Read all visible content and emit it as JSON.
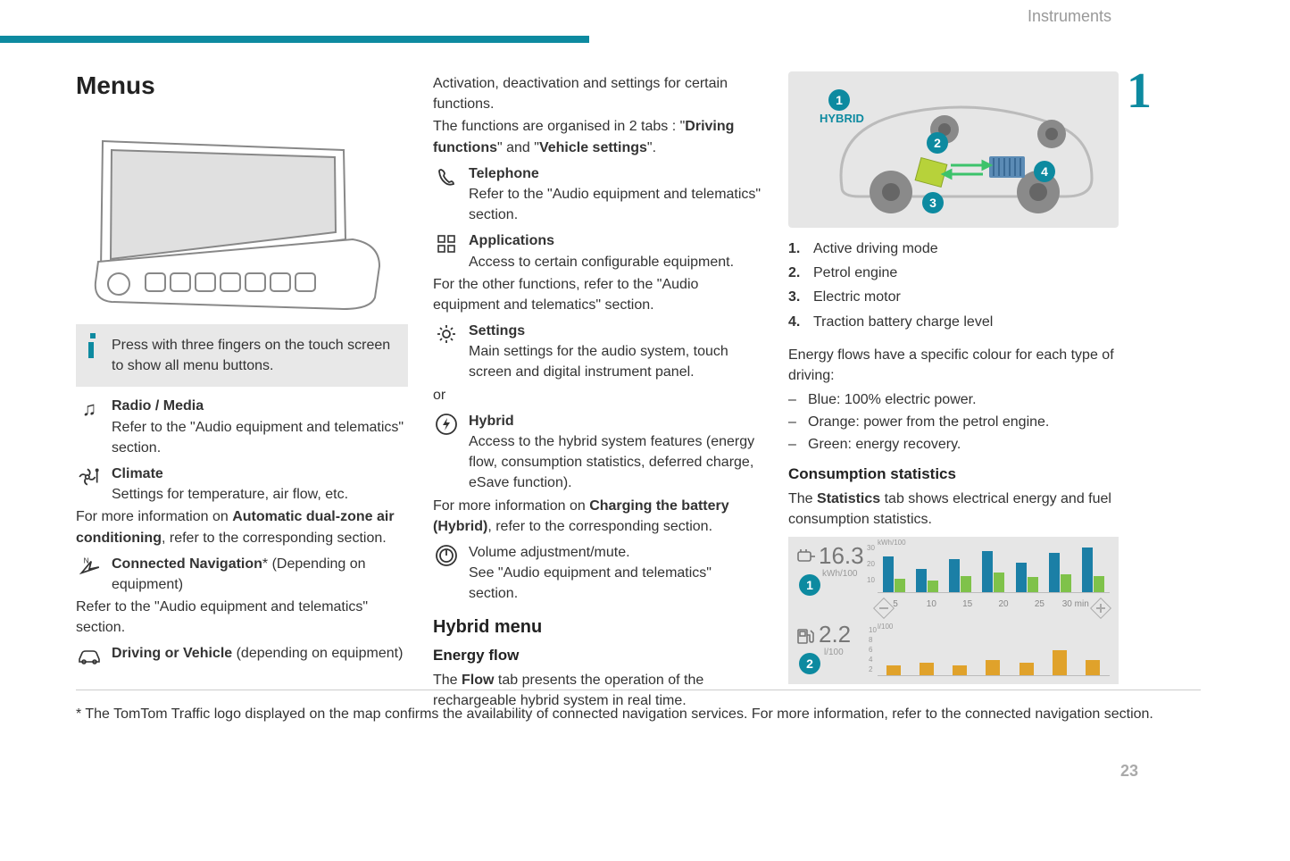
{
  "header": {
    "section": "Instruments",
    "chapter": "1",
    "page_number": "23"
  },
  "colors": {
    "accent": "#0d8aa0",
    "grey_bg": "#e6e6e6",
    "info_bg": "#e8e8e8",
    "text": "#333333",
    "muted": "#999999",
    "chart_blue": "#1b7fa6",
    "chart_green": "#7fc24a",
    "chart_orange": "#e0a22b"
  },
  "col1": {
    "title": "Menus",
    "info_note": "Press with three fingers on the touch screen to show all menu buttons.",
    "items": [
      {
        "icon": "music-note-icon",
        "title": "Radio / Media",
        "line1": "Refer to the \"Audio equipment and telematics\" section.",
        "after": ""
      },
      {
        "icon": "fan-icon",
        "title": "Climate",
        "line1": "Settings for temperature, air flow, etc.",
        "after_prefix": "For more information on ",
        "after_bold": "Automatic dual-zone air conditioning",
        "after_suffix": ", refer to the corresponding section."
      },
      {
        "icon": "nav-arrow-icon",
        "title_bold": "Connected Navigation",
        "title_suffix": "* (Depending on equipment)",
        "after": "Refer to the \"Audio equipment and telematics\" section."
      },
      {
        "icon": "car-icon",
        "title_bold": "Driving or Vehicle",
        "title_suffix": " (depending on equipment)"
      }
    ]
  },
  "col2": {
    "intro1": "Activation, deactivation and settings for certain functions.",
    "intro2_a": "The functions are organised in 2 tabs : \"",
    "intro2_b1": "Driving functions",
    "intro2_c": "\" and \"",
    "intro2_b2": "Vehicle settings",
    "intro2_d": "\".",
    "telephone": {
      "title": "Telephone",
      "line": "Refer to the \"Audio equipment and telematics\" section."
    },
    "applications": {
      "title": "Applications",
      "line": "Access to certain configurable equipment.",
      "after": "For the other functions, refer to the \"Audio equipment and telematics\" section."
    },
    "settings": {
      "title": "Settings",
      "line": "Main settings for the audio system, touch screen and digital instrument panel."
    },
    "or_text": "or",
    "hybrid": {
      "title": "Hybrid",
      "line": "Access to the hybrid system features (energy flow, consumption statistics, deferred charge, eSave function).",
      "after_prefix": "For more information on ",
      "after_bold": "Charging the battery (Hybrid)",
      "after_suffix": ", refer to the corresponding section."
    },
    "volume": {
      "line1": "Volume adjustment/mute.",
      "line2": "See \"Audio equipment and telematics\" section."
    },
    "hybrid_menu_title": "Hybrid menu",
    "energy_flow_title": "Energy flow",
    "energy_flow_text_a": "The ",
    "energy_flow_text_b": "Flow",
    "energy_flow_text_c": " tab presents the operation of the rechargeable hybrid system in real time."
  },
  "col3": {
    "hybrid_label": "HYBRID",
    "legend": [
      {
        "n": "1.",
        "t": "Active driving mode"
      },
      {
        "n": "2.",
        "t": "Petrol engine"
      },
      {
        "n": "3.",
        "t": "Electric motor"
      },
      {
        "n": "4.",
        "t": "Traction battery charge level"
      }
    ],
    "flows_intro": "Energy flows have a specific colour for each type of driving:",
    "flows": [
      "Blue: 100% electric power.",
      "Orange: power from the petrol engine.",
      "Green: energy recovery."
    ],
    "stats_title": "Consumption statistics",
    "stats_text_a": "The ",
    "stats_text_b": "Statistics",
    "stats_text_c": " tab shows electrical energy and fuel consumption statistics.",
    "stats_fig": {
      "kwh_value": "16.3",
      "kwh_unit": "kWh/100",
      "fuel_value": "2.2",
      "fuel_unit": "l/100",
      "x_ticks": [
        "5",
        "10",
        "15",
        "20",
        "25",
        "30 min"
      ],
      "top_y_max": 30,
      "top_bars": [
        {
          "blue": 22,
          "green": 8
        },
        {
          "blue": 14,
          "green": 7
        },
        {
          "blue": 20,
          "green": 10
        },
        {
          "blue": 25,
          "green": 12
        },
        {
          "blue": 18,
          "green": 9
        },
        {
          "blue": 24,
          "green": 11
        },
        {
          "blue": 27,
          "green": 10
        }
      ],
      "bottom_y_max": 10,
      "bottom_bars": [
        2,
        2.5,
        2,
        3,
        2.5,
        5,
        3
      ]
    }
  },
  "footnote": "* The TomTom Traffic logo displayed on the map confirms the availability of connected navigation services. For more information, refer to the connected navigation section."
}
